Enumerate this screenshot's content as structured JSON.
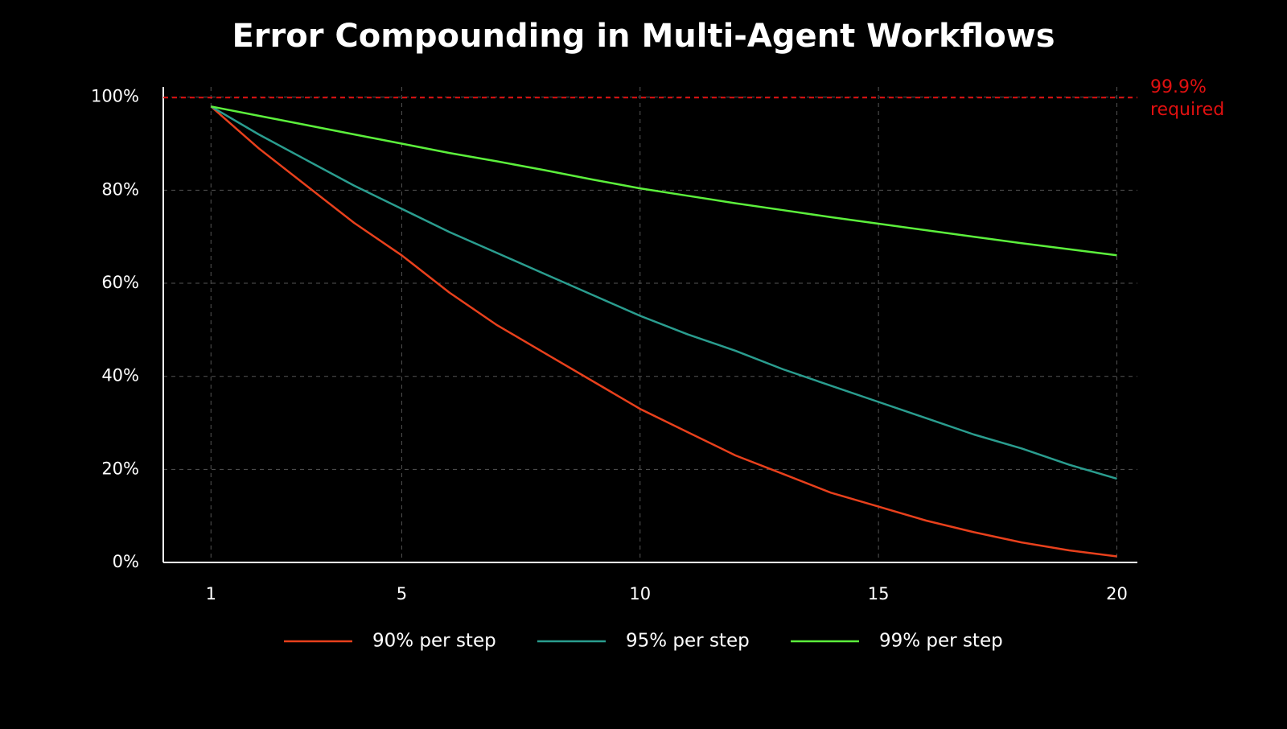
{
  "chart_data": {
    "type": "line",
    "title": "Error Compounding in Multi-Agent Workflows",
    "x": [
      1,
      2,
      3,
      4,
      5,
      6,
      7,
      8,
      9,
      10,
      11,
      12,
      13,
      14,
      15,
      16,
      17,
      18,
      19,
      20
    ],
    "xlim": [
      0,
      20.43
    ],
    "xticks": [
      1,
      5,
      10,
      15,
      20
    ],
    "ylim": [
      0,
      102.2
    ],
    "yticks": [
      {
        "value": 0,
        "label": "0%"
      },
      {
        "value": 20,
        "label": "20%"
      },
      {
        "value": 40,
        "label": "40%"
      },
      {
        "value": 60,
        "label": "60%"
      },
      {
        "value": 80,
        "label": "80%"
      },
      {
        "value": 100,
        "label": "100%"
      }
    ],
    "grid": true,
    "legend": "bottom",
    "series": [
      {
        "name": "90% per step",
        "color": "#e8401c",
        "values": [
          98,
          89,
          81,
          73,
          66,
          58,
          51,
          45,
          39,
          33,
          28,
          23,
          19,
          15,
          12,
          9,
          6.5,
          4.3,
          2.6,
          1.3
        ]
      },
      {
        "name": "95% per step",
        "color": "#2a9d8f",
        "values": [
          98,
          92,
          86.5,
          81,
          76,
          71,
          66.5,
          62,
          57.5,
          53,
          49,
          45.5,
          41.5,
          38,
          34.5,
          31,
          27.5,
          24.5,
          21,
          18
        ]
      },
      {
        "name": "99% per step",
        "color": "#5cf03c",
        "values": [
          98,
          96,
          94,
          92,
          90,
          88,
          86.2,
          84.3,
          82.3,
          80.4,
          78.8,
          77.2,
          75.7,
          74.2,
          72.8,
          71.4,
          70,
          68.6,
          67.3,
          66
        ]
      }
    ],
    "threshold": {
      "value": 99.9,
      "text": [
        "99.9%",
        "required"
      ],
      "color": "#e01010"
    }
  }
}
